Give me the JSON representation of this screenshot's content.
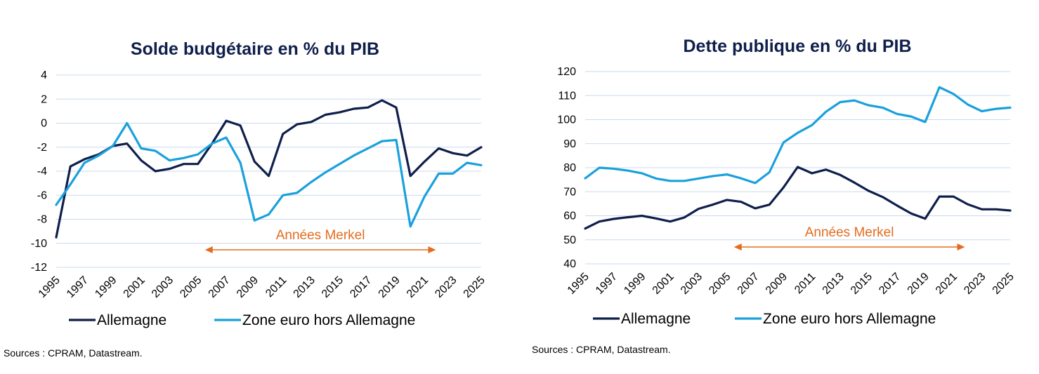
{
  "colors": {
    "allemagne": "#0f1f4b",
    "zone_euro": "#1aa0dc",
    "grid": "#c9d8ef",
    "annotation": "#e46c1e",
    "title": "#0f1f4b"
  },
  "chart_data": [
    {
      "type": "line",
      "title": "Solde budgétaire en % du PIB",
      "x": [
        1995,
        1996,
        1997,
        1998,
        1999,
        2000,
        2001,
        2002,
        2003,
        2004,
        2005,
        2006,
        2007,
        2008,
        2009,
        2010,
        2011,
        2012,
        2013,
        2014,
        2015,
        2016,
        2017,
        2018,
        2019,
        2020,
        2021,
        2022,
        2023,
        2024,
        2025
      ],
      "x_tick_labels": [
        "1995",
        "1997",
        "1999",
        "2001",
        "2003",
        "2005",
        "2007",
        "2009",
        "2011",
        "2013",
        "2015",
        "2017",
        "2019",
        "2021",
        "2023",
        "2025"
      ],
      "ylim": [
        -12,
        4
      ],
      "y_ticks": [
        4,
        2,
        0,
        -2,
        -4,
        -6,
        -8,
        -10,
        -12
      ],
      "y_tick_labels": [
        "4",
        "2",
        "0",
        "-2",
        "-4",
        "-6",
        "-8",
        "-10",
        "-12"
      ],
      "grid": true,
      "legend_position": "bottom",
      "series": [
        {
          "name": "Allemagne",
          "color": "#0f1f4b",
          "values": [
            -9.5,
            -3.6,
            -3.0,
            -2.6,
            -1.9,
            -1.7,
            -3.1,
            -4.0,
            -3.8,
            -3.4,
            -3.4,
            -1.7,
            0.2,
            -0.2,
            -3.2,
            -4.4,
            -0.9,
            -0.1,
            0.1,
            0.7,
            0.9,
            1.2,
            1.3,
            1.9,
            1.3,
            -4.4,
            -3.2,
            -2.1,
            -2.5,
            -2.7,
            -2.0
          ]
        },
        {
          "name": "Zone euro hors Allemagne",
          "color": "#1aa0dc",
          "values": [
            -6.8,
            -5.1,
            -3.3,
            -2.7,
            -1.9,
            0.0,
            -2.1,
            -2.3,
            -3.1,
            -2.9,
            -2.6,
            -1.7,
            -1.2,
            -3.3,
            -8.1,
            -7.6,
            -6.0,
            -5.8,
            -4.9,
            -4.1,
            -3.4,
            -2.7,
            -2.1,
            -1.5,
            -1.4,
            -8.6,
            -6.1,
            -4.2,
            -4.2,
            -3.3,
            -3.5
          ]
        }
      ],
      "annotation": {
        "text": "Années Merkel",
        "x_start": 2005.5,
        "x_end": 2021.8
      }
    },
    {
      "type": "line",
      "title": "Dette publique en % du PIB",
      "x": [
        1995,
        1996,
        1997,
        1998,
        1999,
        2000,
        2001,
        2002,
        2003,
        2004,
        2005,
        2006,
        2007,
        2008,
        2009,
        2010,
        2011,
        2012,
        2013,
        2014,
        2015,
        2016,
        2017,
        2018,
        2019,
        2020,
        2021,
        2022,
        2023,
        2024,
        2025
      ],
      "x_tick_labels": [
        "1995",
        "1997",
        "1999",
        "2001",
        "2003",
        "2005",
        "2007",
        "2009",
        "2011",
        "2013",
        "2015",
        "2017",
        "2019",
        "2021",
        "2023",
        "2025"
      ],
      "ylim": [
        40,
        120
      ],
      "y_ticks": [
        120,
        110,
        100,
        90,
        80,
        70,
        60,
        50,
        40
      ],
      "y_tick_labels": [
        "120",
        "110",
        "100",
        "90",
        "80",
        "70",
        "60",
        "50",
        "40"
      ],
      "grid": true,
      "legend_position": "bottom",
      "series": [
        {
          "name": "Allemagne",
          "color": "#0f1f4b",
          "values": [
            54.7,
            57.6,
            58.7,
            59.4,
            60.0,
            58.9,
            57.6,
            59.3,
            62.9,
            64.6,
            66.6,
            65.8,
            63.1,
            64.6,
            71.8,
            80.3,
            77.7,
            79.2,
            77.0,
            73.8,
            70.4,
            67.8,
            64.3,
            61.0,
            58.8,
            68.0,
            68.0,
            64.8,
            62.7,
            62.7,
            62.2
          ]
        },
        {
          "name": "Zone euro hors Allemagne",
          "color": "#1aa0dc",
          "values": [
            75.6,
            80.0,
            79.6,
            78.8,
            77.7,
            75.5,
            74.5,
            74.5,
            75.5,
            76.5,
            77.2,
            75.6,
            73.6,
            78.1,
            90.5,
            94.5,
            97.7,
            103.3,
            107.3,
            108.0,
            106.0,
            105.0,
            102.4,
            101.3,
            99.0,
            113.5,
            110.7,
            106.3,
            103.5,
            104.5,
            105.0
          ]
        }
      ],
      "annotation": {
        "text": "Années Merkel",
        "x_start": 2005.5,
        "x_end": 2021.8
      }
    }
  ],
  "sources": [
    "Sources : CPRAM, Datastream.",
    "Sources : CPRAM, Datastream."
  ]
}
